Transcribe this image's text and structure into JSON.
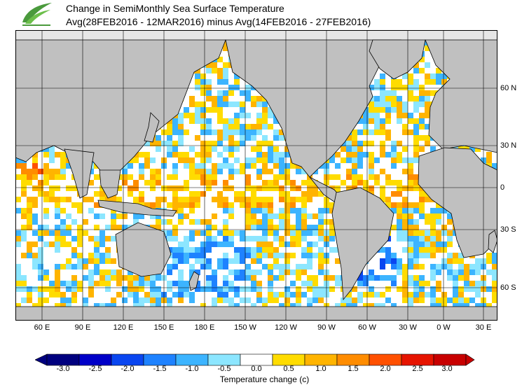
{
  "header": {
    "title_line1": "Change in SemiMonthly Sea Surface Temperature",
    "title_line2": "Avg(28FEB2016 - 12MAR2016) minus Avg(14FEB2016 - 27FEB2016)"
  },
  "map": {
    "ocean_color": "#ffffff",
    "land_color": "#c0c0c0",
    "ice_color": "#e6e6e6",
    "grid": true,
    "lon_labels": [
      "60 E",
      "90 E",
      "120 E",
      "150 E",
      "180 E",
      "150 W",
      "120 W",
      "90 W",
      "60 W",
      "30 W",
      "0 W",
      "30 E"
    ],
    "lat_labels": [
      "60 N",
      "30 N",
      "0",
      "30 S",
      "60 S"
    ]
  },
  "colorbar": {
    "title": "Temperature change  (c)",
    "tick_labels": [
      "-3.0",
      "-2.5",
      "-2.0",
      "-1.5",
      "-1.0",
      "-0.5",
      "0.0",
      "0.5",
      "1.0",
      "1.5",
      "2.0",
      "2.5",
      "3.0"
    ],
    "colors": [
      "#00007f",
      "#0000c8",
      "#0a46f0",
      "#1e82ff",
      "#3cb4ff",
      "#8ce6ff",
      "#ffffff",
      "#ffdc00",
      "#ffb400",
      "#ff8c00",
      "#ff5000",
      "#e61400",
      "#c80000"
    ]
  }
}
